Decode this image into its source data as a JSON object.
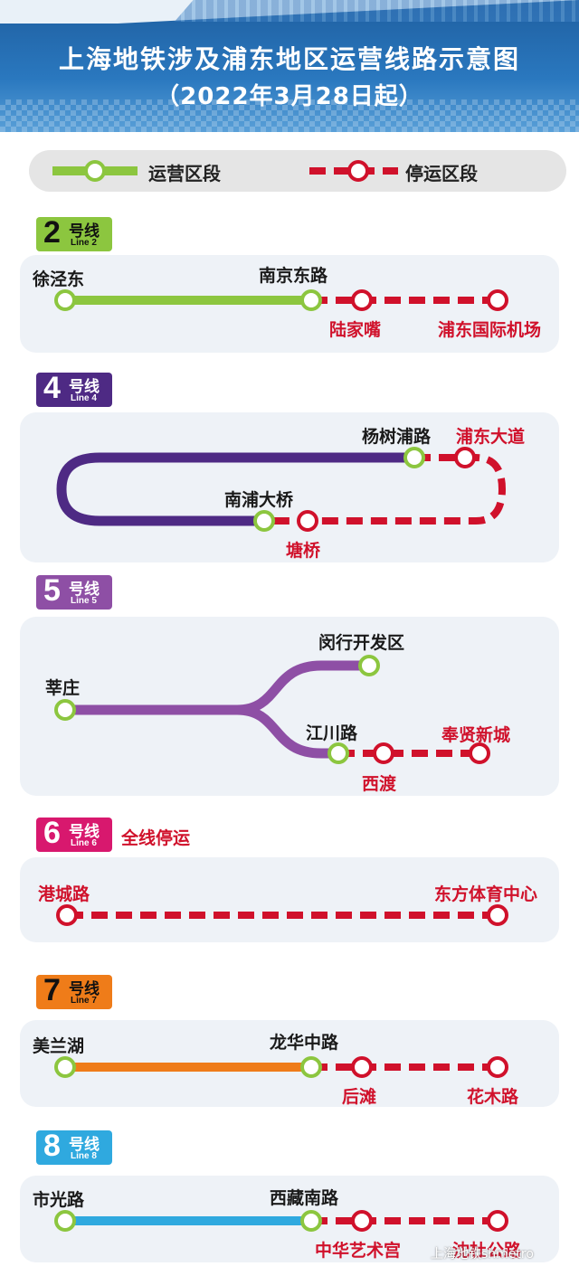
{
  "header": {
    "title": "上海地铁涉及浦东地区运营线路示意图",
    "subtitle": "（2022年3月28日起）"
  },
  "legend": {
    "operating": "运营区段",
    "suspended": "停运区段"
  },
  "colors": {
    "operating_station": "#8cc63f",
    "suspended": "#d0112b",
    "panel_bg": "#eef2f7",
    "line2": "#8cc63f",
    "line4": "#4e2a84",
    "line5": "#8e4fa5",
    "line6": "#d8186e",
    "line7": "#ef7c19",
    "line8": "#2fa9df"
  },
  "lines": {
    "l2": {
      "number": "2",
      "hao": "号线",
      "en": "Line 2",
      "stations": [
        "徐泾东",
        "南京东路",
        "陆家嘴",
        "浦东国际机场"
      ]
    },
    "l4": {
      "number": "4",
      "hao": "号线",
      "en": "Line 4",
      "stations": [
        "杨树浦路",
        "浦东大道",
        "南浦大桥",
        "塘桥"
      ]
    },
    "l5": {
      "number": "5",
      "hao": "号线",
      "en": "Line 5",
      "stations": [
        "莘庄",
        "闵行开发区",
        "江川路",
        "西渡",
        "奉贤新城"
      ]
    },
    "l6": {
      "number": "6",
      "hao": "号线",
      "en": "Line 6",
      "note": "全线停运",
      "stations": [
        "港城路",
        "东方体育中心"
      ]
    },
    "l7": {
      "number": "7",
      "hao": "号线",
      "en": "Line 7",
      "stations": [
        "美兰湖",
        "龙华中路",
        "后滩",
        "花木路"
      ]
    },
    "l8": {
      "number": "8",
      "hao": "号线",
      "en": "Line 8",
      "stations": [
        "市光路",
        "西藏南路",
        "中华艺术宫",
        "沈杜公路"
      ]
    }
  },
  "watermark": "上海地铁shmetro"
}
